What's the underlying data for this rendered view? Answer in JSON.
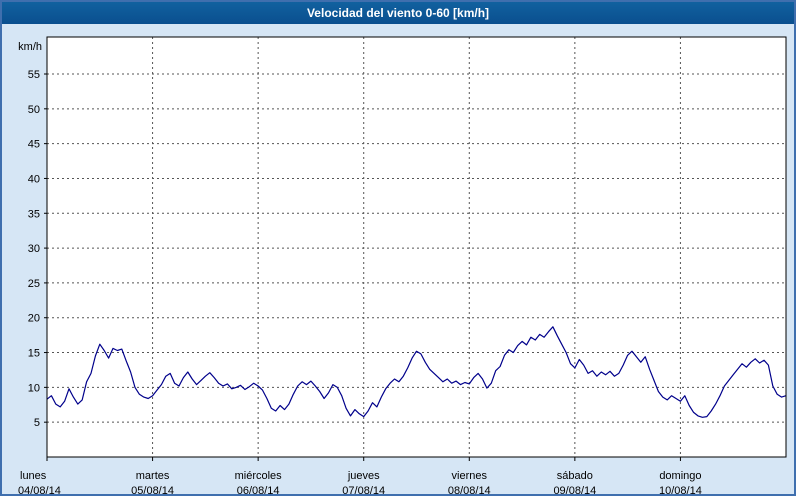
{
  "title_bar": {
    "title": "Velocidad del viento 0-60 [km/h]"
  },
  "colors": {
    "window_background": "#d6e6f5",
    "window_border": "#3f6fae",
    "titlebar_background": "#0d5697",
    "titlebar_text": "#ffffff",
    "plot_background": "#ffffff",
    "grid": "#555555",
    "frame": "#000000",
    "axis_text": "#000000",
    "line": "#00008b"
  },
  "chart_data": {
    "type": "line",
    "title": "Velocidad del viento 0-60 [km/h]",
    "xlabel": "",
    "ylabel": "km/h",
    "ylim": [
      0,
      58
    ],
    "yticks": [
      5,
      10,
      15,
      20,
      25,
      30,
      35,
      40,
      45,
      50,
      55
    ],
    "x_unit": "hours",
    "xlim": [
      0,
      168
    ],
    "grid": "dashed",
    "legend": "none",
    "day_ticks": [
      {
        "hour": 0,
        "day": "lunes",
        "date": "04/08/14"
      },
      {
        "hour": 24,
        "day": "martes",
        "date": "05/08/14"
      },
      {
        "hour": 48,
        "day": "miércoles",
        "date": "06/08/14"
      },
      {
        "hour": 72,
        "day": "jueves",
        "date": "07/08/14"
      },
      {
        "hour": 96,
        "day": "viernes",
        "date": "08/08/14"
      },
      {
        "hour": 120,
        "day": "sábado",
        "date": "09/08/14"
      },
      {
        "hour": 144,
        "day": "domingo",
        "date": "10/08/14"
      }
    ],
    "series": [
      {
        "name": "Velocidad del viento",
        "x_start": 0,
        "x_step": 1,
        "y": [
          8.3,
          8.8,
          7.6,
          7.2,
          8.0,
          9.8,
          8.6,
          7.6,
          8.2,
          10.8,
          12.0,
          14.5,
          16.2,
          15.3,
          14.2,
          15.6,
          15.3,
          15.5,
          13.8,
          12.2,
          10.0,
          9.0,
          8.6,
          8.4,
          8.8,
          9.6,
          10.4,
          11.6,
          12.0,
          10.6,
          10.2,
          11.4,
          12.2,
          11.2,
          10.4,
          11.0,
          11.6,
          12.1,
          11.4,
          10.6,
          10.2,
          10.5,
          9.8,
          10.0,
          10.3,
          9.7,
          10.1,
          10.6,
          10.2,
          9.6,
          8.4,
          7.0,
          6.6,
          7.4,
          6.8,
          7.6,
          9.0,
          10.2,
          10.8,
          10.4,
          10.9,
          10.2,
          9.4,
          8.4,
          9.2,
          10.4,
          10.0,
          8.8,
          7.0,
          5.9,
          6.8,
          6.2,
          5.8,
          6.6,
          7.8,
          7.2,
          8.6,
          9.8,
          10.6,
          11.2,
          10.8,
          11.6,
          12.8,
          14.2,
          15.2,
          14.8,
          13.6,
          12.6,
          12.0,
          11.4,
          10.8,
          11.2,
          10.6,
          10.9,
          10.4,
          10.7,
          10.5,
          11.4,
          12.0,
          11.2,
          9.9,
          10.6,
          12.4,
          13.0,
          14.6,
          15.4,
          15.0,
          16.0,
          16.6,
          16.1,
          17.2,
          16.8,
          17.6,
          17.2,
          18.0,
          18.7,
          17.4,
          16.2,
          15.0,
          13.4,
          12.8,
          14.0,
          13.2,
          12.0,
          12.4,
          11.6,
          12.2,
          11.8,
          12.3,
          11.6,
          12.0,
          13.2,
          14.6,
          15.2,
          14.4,
          13.6,
          14.4,
          12.6,
          11.0,
          9.4,
          8.6,
          8.2,
          8.8,
          8.4,
          8.0,
          8.8,
          7.4,
          6.4,
          5.9,
          5.7,
          5.8,
          6.6,
          7.6,
          8.8,
          10.2,
          11.0,
          11.8,
          12.6,
          13.4,
          12.9,
          13.6,
          14.1,
          13.5,
          13.9,
          13.2,
          10.2,
          9.0,
          8.6,
          8.8
        ]
      }
    ]
  }
}
